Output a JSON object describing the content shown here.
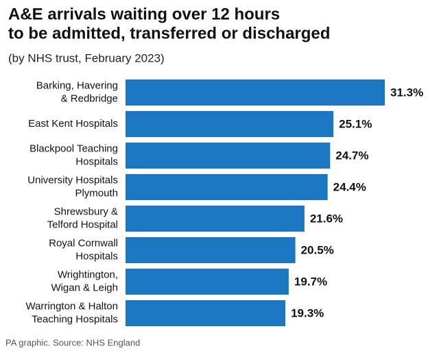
{
  "chart_data": {
    "type": "bar",
    "orientation": "horizontal",
    "title": [
      "A&E arrivals waiting over 12 hours",
      "to be admitted, transferred or discharged"
    ],
    "subtitle": "(by NHS trust, February 2023)",
    "source": "PA graphic. Source: NHS England",
    "categories": [
      [
        "Barking, Havering",
        "& Redbridge"
      ],
      [
        "East Kent Hospitals"
      ],
      [
        "Blackpool Teaching",
        "Hospitals"
      ],
      [
        "University Hospitals",
        "Plymouth"
      ],
      [
        "Shrewsbury &",
        "Telford Hospital"
      ],
      [
        "Royal Cornwall",
        "Hospitals"
      ],
      [
        "Wrightington,",
        "Wigan & Leigh"
      ],
      [
        "Warrington & Halton",
        "Teaching Hospitals"
      ]
    ],
    "values": [
      31.3,
      25.1,
      24.7,
      24.4,
      21.6,
      20.5,
      19.7,
      19.3
    ],
    "value_labels": [
      "31.3%",
      "25.1%",
      "24.7%",
      "24.4%",
      "21.6%",
      "20.5%",
      "19.7%",
      "19.3%"
    ],
    "color": "#1c77c3"
  }
}
